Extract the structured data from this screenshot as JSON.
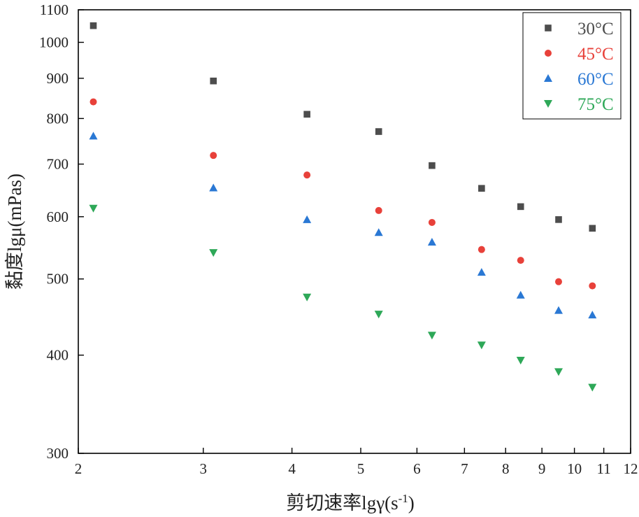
{
  "chart_data": {
    "type": "scatter",
    "xscale": "log",
    "yscale": "log",
    "xlim": [
      2,
      12
    ],
    "ylim": [
      300,
      1100
    ],
    "xticks": [
      2,
      3,
      4,
      5,
      6,
      7,
      8,
      9,
      10,
      11,
      12
    ],
    "yticks": [
      300,
      400,
      500,
      600,
      700,
      800,
      900,
      1000,
      1100
    ],
    "xlabel_main": "剪切速率lgγ(s",
    "xlabel_sup": "-1",
    "xlabel_end": ")",
    "ylabel": "黏度lgμ(mPas)",
    "legend_position": "top-right",
    "x": [
      2.1,
      3.1,
      4.2,
      5.3,
      6.3,
      7.4,
      8.4,
      9.5,
      10.6
    ],
    "series": [
      {
        "name": "30°C",
        "marker": "square",
        "color": "#4d4d4d",
        "values": [
          1050,
          893,
          810,
          770,
          697,
          652,
          618,
          595,
          580
        ]
      },
      {
        "name": "45°C",
        "marker": "circle",
        "color": "#e8413a",
        "values": [
          840,
          718,
          678,
          611,
          590,
          545,
          528,
          496,
          490
        ]
      },
      {
        "name": "60°C",
        "marker": "triangle-up",
        "color": "#2a78d4",
        "values": [
          760,
          653,
          595,
          573,
          557,
          510,
          477,
          456,
          450
        ]
      },
      {
        "name": "75°C",
        "marker": "triangle-down",
        "color": "#2ea858",
        "values": [
          615,
          540,
          474,
          451,
          424,
          412,
          394,
          381,
          364
        ]
      }
    ]
  }
}
